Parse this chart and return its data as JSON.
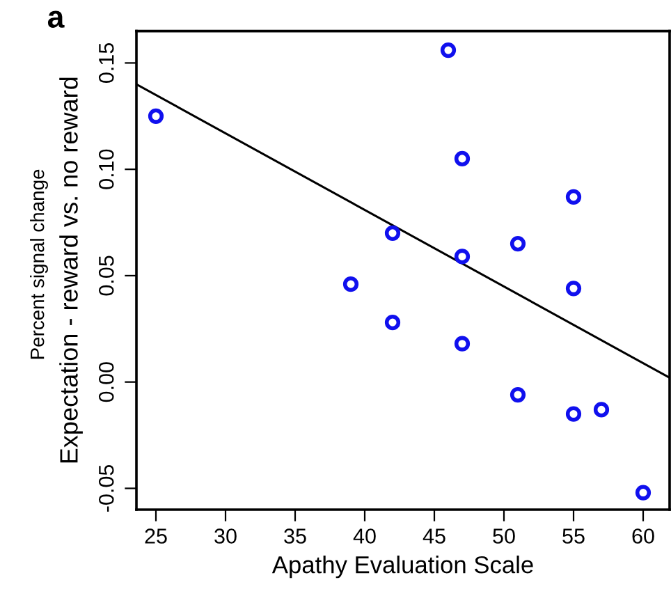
{
  "chart_data": {
    "type": "scatter",
    "title": "a",
    "xlabel": "Apathy Evaluation Scale",
    "ylabel": "Expectation - reward vs. no reward",
    "annotations": [
      "Percent signal change"
    ],
    "xlim": [
      23.6,
      61.9
    ],
    "ylim": [
      -0.06,
      0.165
    ],
    "xticks": [
      25,
      30,
      35,
      40,
      45,
      50,
      55,
      60
    ],
    "yticks": [
      {
        "value": -0.05,
        "label": "-0.05"
      },
      {
        "value": 0,
        "label": "0.00"
      },
      {
        "value": 0.05,
        "label": "0.05"
      },
      {
        "value": 0.1,
        "label": "0.10"
      },
      {
        "value": 0.15,
        "label": "0.15"
      }
    ],
    "grid": false,
    "series": [
      {
        "marker": "circle",
        "color": "#1010ee",
        "x": [
          25,
          46,
          47,
          55,
          42,
          47,
          51,
          39,
          55,
          42,
          47,
          51,
          55,
          57,
          60
        ],
        "values": [
          0.125,
          0.156,
          0.105,
          0.087,
          0.07,
          0.059,
          0.065,
          0.046,
          0.044,
          0.028,
          0.018,
          -0.006,
          -0.015,
          -0.013,
          -0.052
        ]
      },
      {
        "type": "line",
        "color": "#000000",
        "x": [
          23.6,
          61.9
        ],
        "values": [
          0.14,
          0.002
        ]
      }
    ]
  }
}
